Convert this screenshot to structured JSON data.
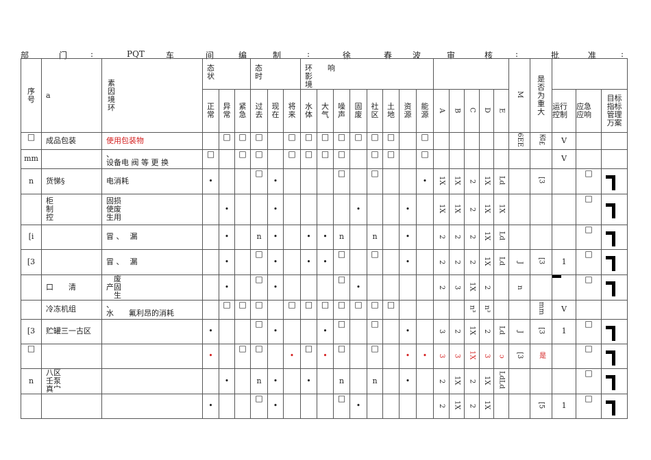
{
  "header_line": {
    "dept_label": "部",
    "dept_label2": "门",
    "colon1": ":",
    "dept_value": "PQT",
    "dept_value2": "车",
    "dept_value3": "间",
    "compiler_label": "编",
    "compiler_label2": "制",
    "colon2": ":",
    "compiler_value": "徐",
    "compiler_value2": "春",
    "compiler_value3": "波",
    "reviewer_label": "审",
    "reviewer_label2": "核",
    "colon3": ":",
    "approver_label": "批",
    "approver_label2": "准",
    "colon4": ":"
  },
  "table": {
    "headers": {
      "seq": "序\n号",
      "item": "a",
      "factor": "素\n因\n境\n环",
      "state": "态\n状",
      "time": "态\n时",
      "impact": "环　　响\n影\n境",
      "m": "M",
      "major": "是\n否\n为\n重\n大",
      "sub": [
        "正\n常",
        "异\n常",
        "紧\n急",
        "过\n去",
        "现\n在",
        "将\n来",
        "水\n体",
        "大\n气",
        "噪\n声",
        "固\n废",
        "社\n区",
        "土\n地",
        "资\n源",
        "能\n源",
        "A",
        "B",
        "C",
        "D",
        "E"
      ],
      "control": "运行\n控制",
      "emergency": "应急\n应响",
      "target": "目标\n指标\n管理\n万案"
    },
    "rows": [
      {
        "cells": [
          "□",
          "成品包装",
          "使用包装物",
          "",
          "□",
          "□",
          "□",
          "",
          "□",
          "□",
          "□",
          "□",
          "□",
          "□",
          "□",
          "",
          "□",
          "",
          "",
          "",
          "",
          "",
          "6EE",
          "否£",
          "V",
          "",
          ""
        ],
        "red": [
          2
        ]
      },
      {
        "cells": [
          "mm",
          "",
          "、\n设备电 阀 等 更 换",
          "□",
          "",
          "□",
          "□",
          "",
          "□",
          "□",
          "□",
          "□",
          "",
          "□",
          "□",
          "",
          "□",
          "",
          "",
          "",
          "",
          "",
          "",
          "",
          "V",
          "",
          ""
        ],
        "red": []
      },
      {
        "cells": [
          "n",
          "货悌§",
          "电消耗",
          "•",
          "",
          "",
          "□",
          "•",
          "",
          "",
          "",
          "□",
          "",
          "□",
          "",
          "",
          "•",
          "1X",
          "1X",
          "2",
          "1X",
          "Ld",
          "",
          "[3",
          "",
          "□",
          "bracket"
        ],
        "red": []
      },
      {
        "cells": [
          "",
          "柜\n制\n控",
          "固损\n使废\n生用",
          "",
          "•",
          "",
          "",
          "•",
          "",
          "",
          "",
          "",
          "•",
          "",
          "",
          "•",
          "",
          "1X",
          "1X",
          "2",
          "1X",
          "1X",
          "",
          "",
          "",
          "□",
          "bracket"
        ],
        "red": []
      },
      {
        "cells": [
          "[i",
          "",
          "冒 、　 漏",
          "",
          "•",
          "",
          "n",
          "•",
          "",
          "•",
          "•",
          "n",
          "",
          "n",
          "",
          "•",
          "",
          "2",
          "2",
          "2",
          "1X",
          "Ld",
          "",
          "",
          "",
          "□",
          "bracket"
        ],
        "red": []
      },
      {
        "cells": [
          "[3",
          "",
          "冒 、　 漏",
          "",
          "•",
          "",
          "□",
          "•",
          "",
          "•",
          "•",
          "□",
          "",
          "□",
          "",
          "•",
          "",
          "2",
          "2",
          "2",
          "1X",
          "Ld",
          "J",
          "[3",
          "1",
          "□",
          "bracket"
        ],
        "red": []
      },
      {
        "cells": [
          "",
          "口　　清",
          "　废\n产固\n　生",
          "",
          "•",
          "",
          "□",
          "•",
          "",
          "",
          "",
          "□",
          "•",
          "",
          "",
          "",
          "",
          "2",
          "3",
          "1X",
          "2",
          "",
          "n",
          "",
          "bar",
          "□",
          "bracket"
        ],
        "red": []
      },
      {
        "cells": [
          "",
          "冷冻机组",
          "、\n水　　氟利昂的消耗",
          "",
          "□",
          "□",
          "□",
          "",
          "□",
          "□",
          "□",
          "□",
          "□",
          "□",
          "□",
          "",
          "",
          "",
          "",
          "n³",
          "n³",
          "",
          "",
          "mm",
          "V",
          "",
          ""
        ],
        "red": []
      },
      {
        "cells": [
          "[3",
          "贮罐三一古区",
          "",
          "•",
          "",
          "",
          "□",
          "•",
          "",
          "",
          "•",
          "□",
          "",
          "□",
          "",
          "•",
          "",
          "3",
          "2",
          "1X",
          "2",
          "Ld",
          "J",
          "[3",
          "1",
          "□",
          "bracket"
        ],
        "red": []
      },
      {
        "cells": [
          "□",
          "",
          "",
          "•",
          "",
          "□",
          "□",
          "",
          "•",
          "□",
          "•",
          "□",
          "",
          "□",
          "",
          "•",
          "•",
          "3",
          "3",
          "1X",
          "3",
          "ɔ",
          "[3",
          "是",
          "",
          "□",
          "bracket"
        ],
        "red": [
          3,
          8,
          10,
          15,
          16,
          17,
          18,
          19,
          20,
          21,
          23
        ]
      },
      {
        "cells": [
          "n",
          "八区\n壬泵\n真宀",
          "",
          "",
          "•",
          "",
          "n",
          "•",
          "",
          "•",
          "",
          "n",
          "",
          "n",
          "",
          "•",
          "",
          "2",
          "1X",
          "2",
          "1X",
          "LdLd",
          "",
          "",
          "",
          "□",
          "bracket"
        ],
        "red": []
      },
      {
        "cells": [
          "",
          "",
          "",
          "•",
          "",
          "",
          "□",
          "•",
          "",
          "",
          "",
          "□",
          "•",
          "",
          "",
          "",
          "",
          "2",
          "1X",
          "2",
          "1X",
          "",
          "",
          "[5",
          "1",
          "□",
          "bracket"
        ],
        "red": []
      }
    ]
  }
}
